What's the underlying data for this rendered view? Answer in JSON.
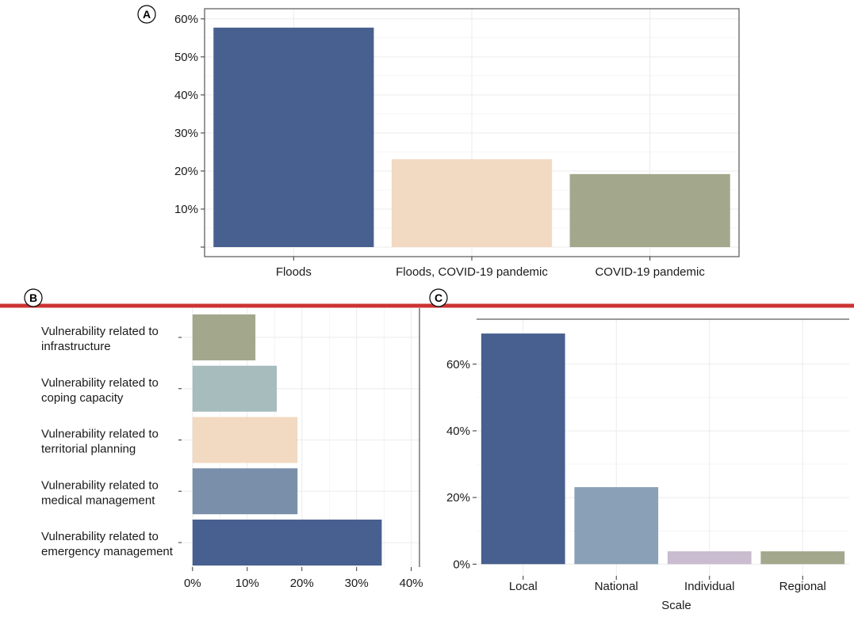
{
  "colors": {
    "accent_line": "#cc3333",
    "grid": "#ebebeb",
    "axis": "#333333"
  },
  "chart_data": [
    {
      "panel": "A",
      "type": "bar",
      "orientation": "vertical",
      "categories": [
        "Floods",
        "Floods, COVID-19 pandemic",
        "COVID-19 pandemic"
      ],
      "values": [
        57.7,
        23.1,
        19.2
      ],
      "colors": [
        "#48608f",
        "#f2d9c1",
        "#a3a88d"
      ],
      "ylim": [
        0,
        61
      ],
      "yticks": [
        10,
        20,
        30,
        40,
        50,
        60
      ],
      "tick_labels": [
        "10%",
        "20%",
        "30%",
        "40%",
        "50%",
        "60%"
      ],
      "xlabel": "",
      "ylabel": "",
      "grid": true,
      "legend": "none"
    },
    {
      "panel": "B",
      "type": "bar",
      "orientation": "horizontal",
      "categories": [
        [
          "Vulnerability related to",
          "infrastructure"
        ],
        [
          "Vulnerability related to",
          "coping capacity"
        ],
        [
          "Vulnerability related to",
          "territorial planning"
        ],
        [
          "Vulnerability related to",
          "medical management"
        ],
        [
          "Vulnerability related to",
          "emergency management"
        ]
      ],
      "values": [
        11.5,
        15.4,
        19.2,
        19.2,
        34.6
      ],
      "colors": [
        "#a3a88d",
        "#a6bcbd",
        "#f2d9c1",
        "#7a8fa9",
        "#48608f"
      ],
      "xlim": [
        -2,
        41.5
      ],
      "xticks": [
        0,
        10,
        20,
        30,
        40
      ],
      "tick_labels": [
        "0%",
        "10%",
        "20%",
        "30%",
        "40%"
      ],
      "xlabel": "",
      "ylabel": "",
      "grid": true,
      "legend": "none"
    },
    {
      "panel": "C",
      "type": "bar",
      "orientation": "vertical",
      "categories": [
        "Local",
        "National",
        "Individual",
        "Regional"
      ],
      "values": [
        69.2,
        23.1,
        3.85,
        3.85
      ],
      "colors": [
        "#48608f",
        "#8aa0b6",
        "#c9bccf",
        "#a3a88d"
      ],
      "ylim": [
        -3.5,
        73.5
      ],
      "yticks": [
        0,
        20,
        40,
        60
      ],
      "tick_labels": [
        "0%",
        "20%",
        "40%",
        "60%"
      ],
      "xlabel": "Scale",
      "ylabel": "",
      "grid": true,
      "legend": "none"
    }
  ]
}
